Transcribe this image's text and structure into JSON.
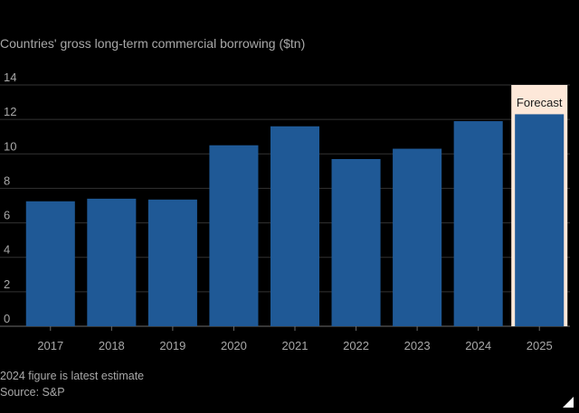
{
  "chart_data": {
    "type": "bar",
    "title": "Countries' gross long-term commercial borrowing ($tn)",
    "categories": [
      "2017",
      "2018",
      "2019",
      "2020",
      "2021",
      "2022",
      "2023",
      "2024",
      "2025"
    ],
    "values": [
      7.25,
      7.4,
      7.35,
      10.5,
      11.6,
      9.7,
      10.3,
      11.9,
      12.3
    ],
    "ylim": [
      0,
      14
    ],
    "yticks": [
      0,
      2,
      4,
      6,
      8,
      10,
      12,
      14
    ],
    "xlabel": "",
    "ylabel": "",
    "grid": true,
    "highlight": {
      "category": "2025",
      "label": "Forecast",
      "color": "#fde8d9"
    },
    "bar_color": "#1f5996",
    "grid_color": "#333333",
    "notes": [
      "2024 figure is latest estimate"
    ],
    "source": "Source: S&P"
  },
  "footnote": {
    "note": "2024 figure is latest estimate",
    "source": "Source: S&P"
  },
  "colors": {
    "background": "#000000",
    "text": "#a8a8a8",
    "bar": "#1f5996",
    "forecast_bg": "#fde8d9",
    "grid": "#333333"
  }
}
